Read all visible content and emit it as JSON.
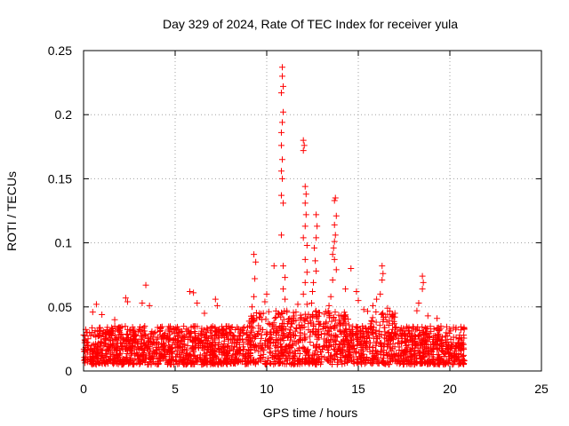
{
  "chart_data": {
    "type": "scatter",
    "title": "Day 329 of 2024, Rate Of TEC Index for receiver yula",
    "xlabel": "GPS time / hours",
    "ylabel": "ROTI / TECUs",
    "xlim": [
      0,
      25
    ],
    "ylim": [
      0,
      0.25
    ],
    "xticks": [
      0,
      5,
      10,
      15,
      20,
      25
    ],
    "yticks": [
      0,
      0.05,
      0.1,
      0.15,
      0.2,
      0.25
    ],
    "xtick_labels": [
      "0",
      "5",
      "10",
      "15",
      "20",
      "25"
    ],
    "ytick_labels": [
      "0",
      "0.05",
      "0.1",
      "0.15",
      "0.2",
      "0.25"
    ],
    "grid": true,
    "marker": "+",
    "color": "#ff0000",
    "baseline_envelope": {
      "x_range": [
        0,
        20.8
      ],
      "typical_y_range": [
        0.005,
        0.035
      ]
    },
    "notable_points": [
      {
        "x": 0.5,
        "y": 0.046
      },
      {
        "x": 0.7,
        "y": 0.052
      },
      {
        "x": 1.0,
        "y": 0.044
      },
      {
        "x": 1.7,
        "y": 0.04
      },
      {
        "x": 2.3,
        "y": 0.057
      },
      {
        "x": 2.4,
        "y": 0.054
      },
      {
        "x": 3.2,
        "y": 0.053
      },
      {
        "x": 3.4,
        "y": 0.067
      },
      {
        "x": 3.6,
        "y": 0.051
      },
      {
        "x": 5.8,
        "y": 0.062
      },
      {
        "x": 6.0,
        "y": 0.061
      },
      {
        "x": 6.2,
        "y": 0.053
      },
      {
        "x": 6.6,
        "y": 0.045
      },
      {
        "x": 7.2,
        "y": 0.056
      },
      {
        "x": 7.3,
        "y": 0.051
      },
      {
        "x": 9.3,
        "y": 0.091
      },
      {
        "x": 9.4,
        "y": 0.085
      },
      {
        "x": 9.35,
        "y": 0.072
      },
      {
        "x": 9.3,
        "y": 0.058
      },
      {
        "x": 9.2,
        "y": 0.05
      },
      {
        "x": 9.9,
        "y": 0.054
      },
      {
        "x": 10.0,
        "y": 0.06
      },
      {
        "x": 10.4,
        "y": 0.082
      },
      {
        "x": 10.85,
        "y": 0.237
      },
      {
        "x": 10.85,
        "y": 0.23
      },
      {
        "x": 10.9,
        "y": 0.222
      },
      {
        "x": 10.8,
        "y": 0.217
      },
      {
        "x": 10.9,
        "y": 0.202
      },
      {
        "x": 10.85,
        "y": 0.194
      },
      {
        "x": 10.8,
        "y": 0.186
      },
      {
        "x": 10.8,
        "y": 0.176
      },
      {
        "x": 10.85,
        "y": 0.165
      },
      {
        "x": 10.8,
        "y": 0.156
      },
      {
        "x": 10.85,
        "y": 0.15
      },
      {
        "x": 10.8,
        "y": 0.137
      },
      {
        "x": 10.9,
        "y": 0.131
      },
      {
        "x": 10.8,
        "y": 0.106
      },
      {
        "x": 10.9,
        "y": 0.082
      },
      {
        "x": 11.0,
        "y": 0.073
      },
      {
        "x": 10.9,
        "y": 0.064
      },
      {
        "x": 11.0,
        "y": 0.056
      },
      {
        "x": 11.1,
        "y": 0.047
      },
      {
        "x": 11.7,
        "y": 0.052
      },
      {
        "x": 12.0,
        "y": 0.18
      },
      {
        "x": 12.05,
        "y": 0.176
      },
      {
        "x": 12.0,
        "y": 0.172
      },
      {
        "x": 12.1,
        "y": 0.144
      },
      {
        "x": 12.15,
        "y": 0.138
      },
      {
        "x": 12.1,
        "y": 0.131
      },
      {
        "x": 12.15,
        "y": 0.122
      },
      {
        "x": 12.1,
        "y": 0.113
      },
      {
        "x": 12.0,
        "y": 0.104
      },
      {
        "x": 12.2,
        "y": 0.098
      },
      {
        "x": 12.1,
        "y": 0.087
      },
      {
        "x": 12.2,
        "y": 0.077
      },
      {
        "x": 12.1,
        "y": 0.069
      },
      {
        "x": 12.0,
        "y": 0.06
      },
      {
        "x": 12.2,
        "y": 0.052
      },
      {
        "x": 12.7,
        "y": 0.122
      },
      {
        "x": 12.75,
        "y": 0.113
      },
      {
        "x": 12.7,
        "y": 0.104
      },
      {
        "x": 12.6,
        "y": 0.096
      },
      {
        "x": 12.65,
        "y": 0.086
      },
      {
        "x": 12.7,
        "y": 0.078
      },
      {
        "x": 12.55,
        "y": 0.069
      },
      {
        "x": 12.5,
        "y": 0.062
      },
      {
        "x": 12.45,
        "y": 0.053
      },
      {
        "x": 13.75,
        "y": 0.135
      },
      {
        "x": 13.7,
        "y": 0.133
      },
      {
        "x": 13.8,
        "y": 0.121
      },
      {
        "x": 13.7,
        "y": 0.114
      },
      {
        "x": 13.75,
        "y": 0.106
      },
      {
        "x": 13.7,
        "y": 0.101
      },
      {
        "x": 13.65,
        "y": 0.096
      },
      {
        "x": 13.6,
        "y": 0.091
      },
      {
        "x": 13.7,
        "y": 0.087
      },
      {
        "x": 13.8,
        "y": 0.079
      },
      {
        "x": 13.6,
        "y": 0.071
      },
      {
        "x": 13.5,
        "y": 0.058
      },
      {
        "x": 13.4,
        "y": 0.051
      },
      {
        "x": 14.6,
        "y": 0.08
      },
      {
        "x": 14.3,
        "y": 0.064
      },
      {
        "x": 14.9,
        "y": 0.062
      },
      {
        "x": 15.0,
        "y": 0.055
      },
      {
        "x": 15.3,
        "y": 0.048
      },
      {
        "x": 16.3,
        "y": 0.082
      },
      {
        "x": 16.35,
        "y": 0.076
      },
      {
        "x": 16.3,
        "y": 0.071
      },
      {
        "x": 16.2,
        "y": 0.06
      },
      {
        "x": 16.0,
        "y": 0.056
      },
      {
        "x": 15.8,
        "y": 0.051
      },
      {
        "x": 16.6,
        "y": 0.049
      },
      {
        "x": 17.0,
        "y": 0.045
      },
      {
        "x": 18.5,
        "y": 0.074
      },
      {
        "x": 18.55,
        "y": 0.069
      },
      {
        "x": 18.5,
        "y": 0.064
      },
      {
        "x": 18.3,
        "y": 0.053
      },
      {
        "x": 18.2,
        "y": 0.047
      },
      {
        "x": 18.8,
        "y": 0.043
      },
      {
        "x": 19.3,
        "y": 0.041
      },
      {
        "x": 20.2,
        "y": 0.034
      },
      {
        "x": 20.6,
        "y": 0.032
      }
    ]
  }
}
